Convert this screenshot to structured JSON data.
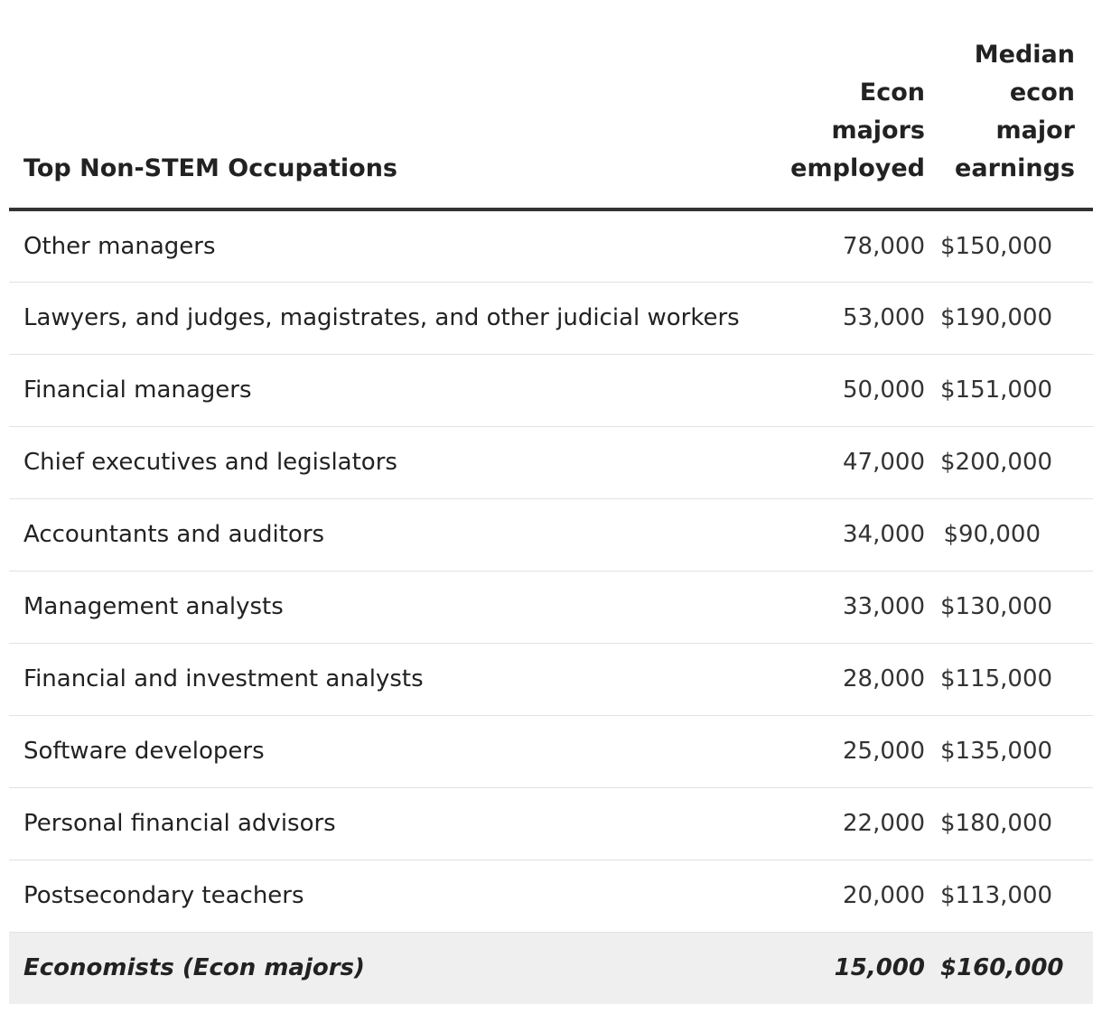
{
  "table": {
    "headers": {
      "occupation": "Top Non-STEM Occupations",
      "employed_lines": [
        "Econ",
        "majors",
        "employed"
      ],
      "earnings_lines": [
        "Median",
        "econ",
        "major",
        "earnings"
      ]
    },
    "rows": [
      {
        "occupation": "Other managers",
        "employed": "78,000",
        "earnings": "$150,000"
      },
      {
        "occupation": "Lawyers, and judges, magistrates, and other judicial workers",
        "employed": "53,000",
        "earnings": "$190,000"
      },
      {
        "occupation": "Financial managers",
        "employed": "50,000",
        "earnings": "$151,000"
      },
      {
        "occupation": "Chief executives and legislators",
        "employed": "47,000",
        "earnings": "$200,000"
      },
      {
        "occupation": "Accountants and auditors",
        "employed": "34,000",
        "earnings": "$90,000"
      },
      {
        "occupation": "Management analysts",
        "employed": "33,000",
        "earnings": "$130,000"
      },
      {
        "occupation": "Financial and investment analysts",
        "employed": "28,000",
        "earnings": "$115,000"
      },
      {
        "occupation": "Software developers",
        "employed": "25,000",
        "earnings": "$135,000"
      },
      {
        "occupation": "Personal financial advisors",
        "employed": "22,000",
        "earnings": "$180,000"
      },
      {
        "occupation": "Postsecondary teachers",
        "employed": "20,000",
        "earnings": "$113,000"
      }
    ],
    "highlight_row": {
      "occupation": "Economists (Econ majors)",
      "employed": "15,000",
      "earnings": "$160,000"
    }
  },
  "colors": {
    "text": "#222222",
    "header_rule": "#333333",
    "row_divider": "#e2e2e2",
    "highlight_background": "#efefef"
  }
}
